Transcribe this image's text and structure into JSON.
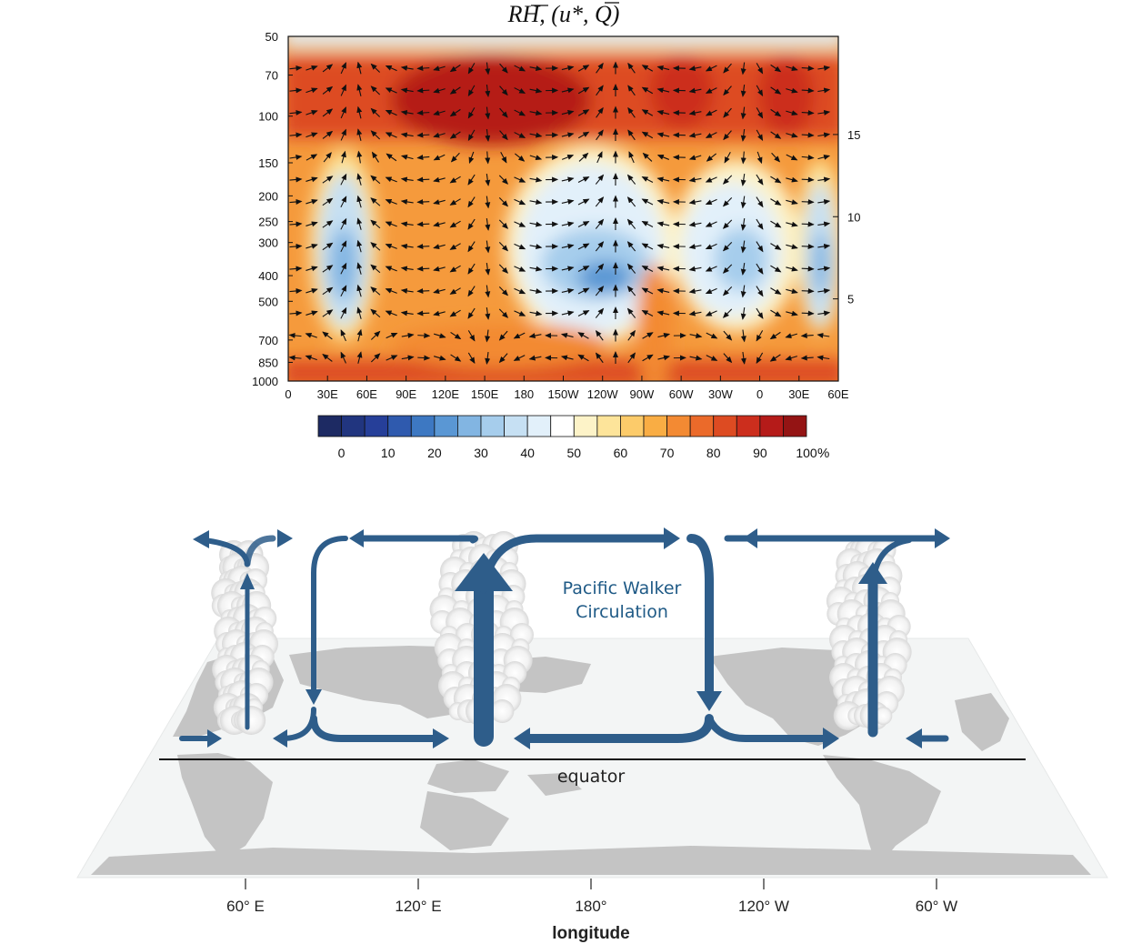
{
  "title": "RH, (u*, Q)",
  "title_parts": {
    "var": "RH",
    "paren_open": ", (",
    "u": "u",
    "star": "*",
    "comma": ", ",
    "q": "Q",
    "paren_close": ")"
  },
  "chart_data": {
    "type": "heatmap",
    "title": "RH, (u*, Q)",
    "y_left_ticks": [
      "50",
      "70",
      "100",
      "150",
      "200",
      "250",
      "300",
      "400",
      "500",
      "700",
      "850",
      "1000"
    ],
    "y_right_ticks": [
      "15",
      "10",
      "5"
    ],
    "x_ticks": [
      "0",
      "30E",
      "60E",
      "90E",
      "120E",
      "150E",
      "180",
      "150W",
      "120W",
      "90W",
      "60W",
      "30W",
      "0",
      "30E",
      "60E"
    ],
    "colorbar_ticks": [
      "0",
      "10",
      "20",
      "30",
      "40",
      "50",
      "60",
      "70",
      "80",
      "90",
      "100"
    ],
    "colorbar_unit": "%",
    "colorbar_colors": [
      "#1d2a63",
      "#21357f",
      "#263f99",
      "#2f5aae",
      "#3d78c2",
      "#5a97d4",
      "#82b5e2",
      "#a6cdec",
      "#c6e0f3",
      "#e2f0fa",
      "#ffffff",
      "#fdf3c8",
      "#fde49a",
      "#fccb6a",
      "#f9ad44",
      "#f38a33",
      "#eb6a2a",
      "#dd4b22",
      "#cc2e1d",
      "#b51b19",
      "#941414"
    ]
  },
  "diagram": {
    "label": [
      "Pacific Walker",
      "Circulation"
    ],
    "equator": "equator",
    "lon_ticks": [
      "60° E",
      "120° E",
      "180°",
      "120° W",
      "60° W"
    ],
    "xlabel": "longitude",
    "colors": {
      "arrow": "#2e5d8a",
      "land": "#c4c4c4",
      "ocean": "#f4f6f6",
      "text": "#1f5a86"
    }
  }
}
